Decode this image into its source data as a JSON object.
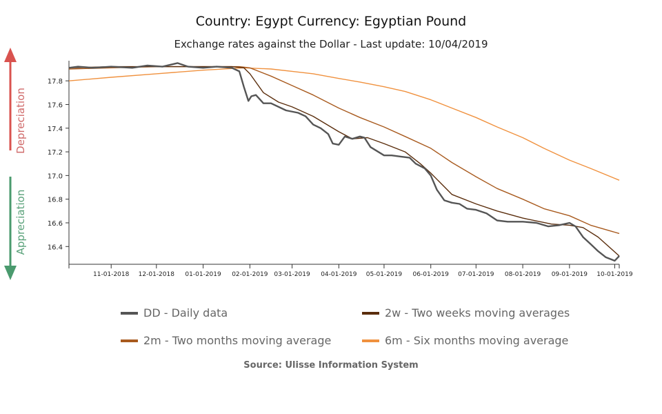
{
  "title": "Country: Egypt Currency: Egyptian Pound",
  "subtitle": "Exchange rates against the Dollar - Last update: 10/04/2019",
  "side_labels": {
    "depreciation": "Depreciation",
    "appreciation": "Appreciation"
  },
  "colors": {
    "depreciation": "#d9534f",
    "appreciation": "#4a9a6e",
    "dd": "#555555",
    "w2": "#5a2d0c",
    "m2": "#a85a1e",
    "m6": "#f0913e"
  },
  "legend": [
    {
      "label": "DD - Daily data",
      "color": "#555555"
    },
    {
      "label": "2w - Two weeks moving averages",
      "color": "#5a2d0c"
    },
    {
      "label": "2m - Two months moving average",
      "color": "#a85a1e"
    },
    {
      "label": "6m - Six months moving average",
      "color": "#f0913e"
    }
  ],
  "source": "Source: Ulisse Information System",
  "chart_data": {
    "type": "line",
    "title": "Country: Egypt Currency: Egyptian Pound",
    "subtitle": "Exchange rates against the Dollar - Last update: 10/04/2019",
    "xlabel": "",
    "ylabel": "",
    "x_range": [
      "2018-10-04",
      "2019-10-04"
    ],
    "ylim": [
      16.25,
      17.97
    ],
    "y_ticks": [
      16.4,
      16.6,
      16.8,
      17.0,
      17.2,
      17.4,
      17.6,
      17.8
    ],
    "y_tick_labels": [
      "16.4",
      "16.6",
      "16.8",
      "17.0",
      "17.2",
      "17.4",
      "17.6",
      "17.8"
    ],
    "x_ticks": [
      "2018-11-01",
      "2018-12-01",
      "2019-01-01",
      "2019-02-01",
      "2019-03-01",
      "2019-04-01",
      "2019-05-01",
      "2019-06-01",
      "2019-07-01",
      "2019-08-01",
      "2019-09-01",
      "2019-10-01"
    ],
    "x_tick_labels": [
      "11-01-2018",
      "12-01-2018",
      "01-01-2019",
      "02-01-2019",
      "03-01-2019",
      "04-01-2019",
      "05-01-2019",
      "06-01-2019",
      "07-01-2019",
      "08-01-2019",
      "09-01-2019",
      "10-01-2019"
    ],
    "grid": false,
    "legend_position": "bottom",
    "series": [
      {
        "name": "DD - Daily data",
        "x": [
          "2018-10-04",
          "2018-10-10",
          "2018-10-20",
          "2018-11-01",
          "2018-11-15",
          "2018-11-25",
          "2018-12-05",
          "2018-12-15",
          "2018-12-22",
          "2019-01-01",
          "2019-01-10",
          "2019-01-20",
          "2019-01-25",
          "2019-01-28",
          "2019-01-31",
          "2019-02-02",
          "2019-02-05",
          "2019-02-10",
          "2019-02-15",
          "2019-02-25",
          "2019-03-05",
          "2019-03-10",
          "2019-03-15",
          "2019-03-20",
          "2019-03-25",
          "2019-03-28",
          "2019-04-01",
          "2019-04-05",
          "2019-04-10",
          "2019-04-15",
          "2019-04-18",
          "2019-04-22",
          "2019-05-01",
          "2019-05-06",
          "2019-05-12",
          "2019-05-18",
          "2019-05-22",
          "2019-05-28",
          "2019-06-01",
          "2019-06-05",
          "2019-06-10",
          "2019-06-15",
          "2019-06-20",
          "2019-06-25",
          "2019-07-01",
          "2019-07-08",
          "2019-07-15",
          "2019-07-22",
          "2019-08-01",
          "2019-08-10",
          "2019-08-18",
          "2019-08-25",
          "2019-09-01",
          "2019-09-05",
          "2019-09-10",
          "2019-09-15",
          "2019-09-20",
          "2019-09-25",
          "2019-10-01",
          "2019-10-04"
        ],
        "values": [
          17.91,
          17.92,
          17.91,
          17.92,
          17.91,
          17.93,
          17.92,
          17.95,
          17.92,
          17.91,
          17.92,
          17.91,
          17.88,
          17.75,
          17.63,
          17.67,
          17.68,
          17.61,
          17.61,
          17.55,
          17.53,
          17.5,
          17.43,
          17.4,
          17.35,
          17.27,
          17.26,
          17.33,
          17.31,
          17.33,
          17.32,
          17.24,
          17.17,
          17.17,
          17.16,
          17.15,
          17.1,
          17.06,
          17.0,
          16.88,
          16.79,
          16.77,
          16.76,
          16.72,
          16.71,
          16.68,
          16.62,
          16.61,
          16.61,
          16.6,
          16.57,
          16.58,
          16.6,
          16.57,
          16.48,
          16.42,
          16.36,
          16.31,
          16.28,
          16.32
        ]
      },
      {
        "name": "2w - Two weeks moving averages",
        "x": [
          "2018-10-04",
          "2018-11-01",
          "2018-12-01",
          "2019-01-01",
          "2019-01-20",
          "2019-01-28",
          "2019-02-01",
          "2019-02-10",
          "2019-02-20",
          "2019-03-01",
          "2019-03-15",
          "2019-04-01",
          "2019-04-10",
          "2019-04-20",
          "2019-05-01",
          "2019-05-15",
          "2019-05-25",
          "2019-06-01",
          "2019-06-15",
          "2019-07-01",
          "2019-07-15",
          "2019-08-01",
          "2019-08-20",
          "2019-09-01",
          "2019-09-10",
          "2019-09-20",
          "2019-10-04"
        ],
        "values": [
          17.91,
          17.92,
          17.92,
          17.92,
          17.92,
          17.91,
          17.86,
          17.7,
          17.62,
          17.58,
          17.5,
          17.37,
          17.31,
          17.32,
          17.27,
          17.2,
          17.1,
          17.02,
          16.84,
          16.76,
          16.7,
          16.64,
          16.59,
          16.58,
          16.56,
          16.48,
          16.32
        ]
      },
      {
        "name": "2m - Two months moving average",
        "x": [
          "2018-10-04",
          "2018-11-01",
          "2018-12-01",
          "2019-01-01",
          "2019-01-25",
          "2019-02-01",
          "2019-02-15",
          "2019-03-01",
          "2019-03-15",
          "2019-04-01",
          "2019-04-15",
          "2019-05-01",
          "2019-05-15",
          "2019-06-01",
          "2019-06-15",
          "2019-07-01",
          "2019-07-15",
          "2019-08-01",
          "2019-08-15",
          "2019-09-01",
          "2019-09-15",
          "2019-10-04"
        ],
        "values": [
          17.9,
          17.91,
          17.92,
          17.92,
          17.92,
          17.91,
          17.84,
          17.76,
          17.68,
          17.57,
          17.49,
          17.41,
          17.33,
          17.23,
          17.11,
          16.99,
          16.89,
          16.8,
          16.72,
          16.66,
          16.58,
          16.51
        ]
      },
      {
        "name": "6m - Six months moving average",
        "x": [
          "2018-10-04",
          "2018-11-01",
          "2018-12-01",
          "2019-01-01",
          "2019-01-28",
          "2019-02-15",
          "2019-03-01",
          "2019-03-15",
          "2019-04-01",
          "2019-04-15",
          "2019-05-01",
          "2019-05-15",
          "2019-06-01",
          "2019-06-15",
          "2019-07-01",
          "2019-07-15",
          "2019-08-01",
          "2019-08-15",
          "2019-09-01",
          "2019-09-15",
          "2019-10-04"
        ],
        "values": [
          17.8,
          17.83,
          17.86,
          17.89,
          17.91,
          17.9,
          17.88,
          17.86,
          17.82,
          17.79,
          17.75,
          17.71,
          17.64,
          17.57,
          17.49,
          17.41,
          17.32,
          17.23,
          17.13,
          17.06,
          16.96
        ]
      }
    ]
  }
}
